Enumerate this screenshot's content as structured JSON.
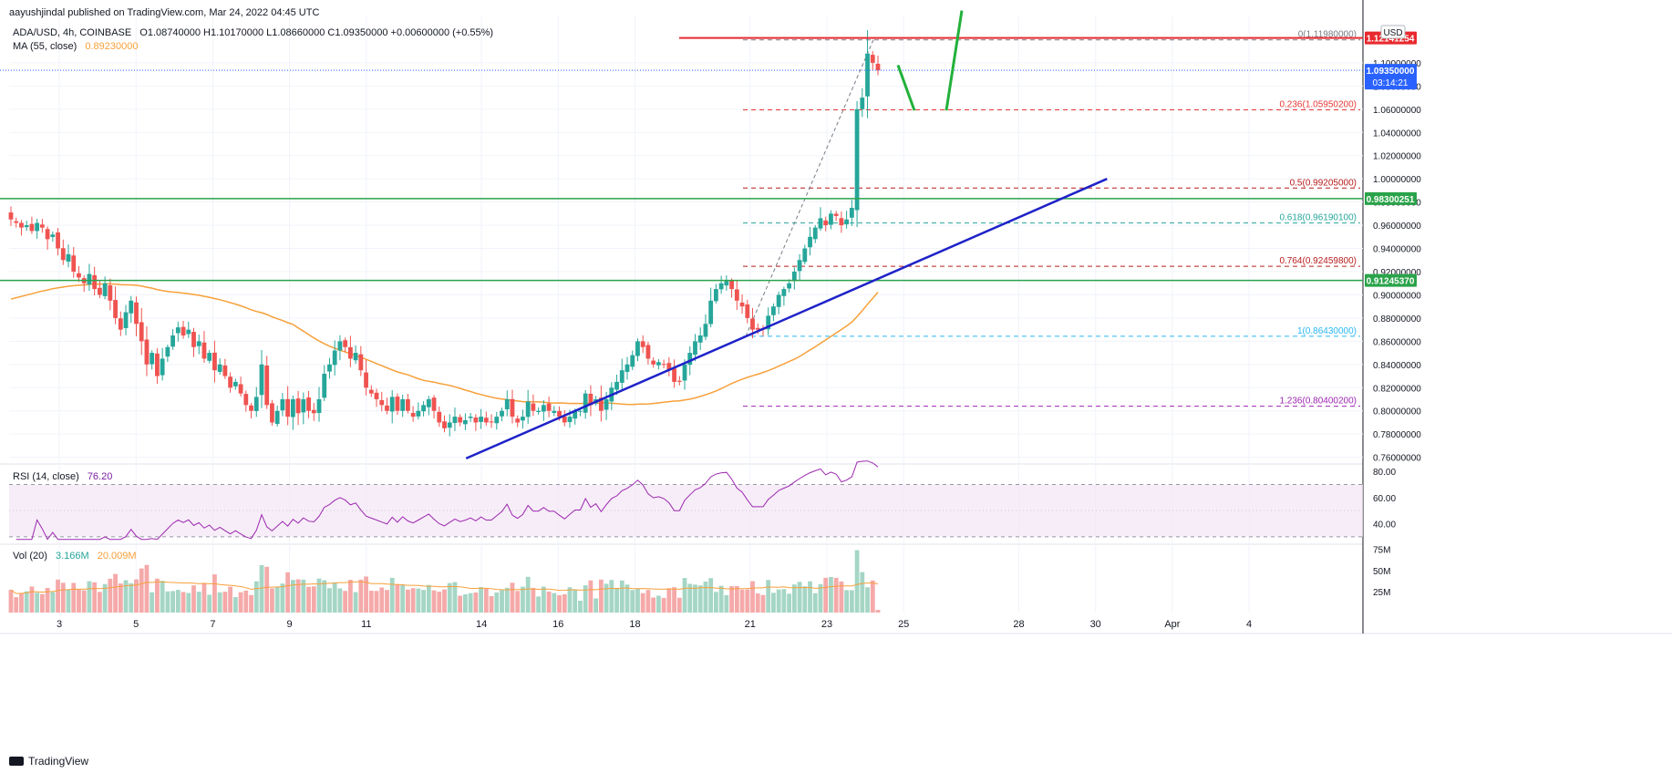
{
  "header": {
    "published": "aayushjindal published on TradingView.com, Mar 24, 2022 04:45 UTC"
  },
  "main_legend": {
    "symbol": "ADA/USD, 4h, COINBASE",
    "ohlc": "O1.08740000 H1.10170000 L1.08660000 C1.09350000 +0.00600000 (+0.55%)"
  },
  "ma_legend": {
    "label": "MA (55, close)",
    "value": "0.89230000"
  },
  "rsi_legend": {
    "label": "RSI (14, close)",
    "value": "76.20"
  },
  "vol_legend": {
    "label": "Vol (20)",
    "value1": "3.166M",
    "value2": "20.009M"
  },
  "footer": {
    "brand": "TradingView"
  },
  "currency_badge": "USD",
  "colors": {
    "up": "#26a69a",
    "down": "#ef5350",
    "ma": "#f7a03a",
    "trend": "#1e22c8",
    "support": "#2aa34a",
    "resistance": "#e8292e",
    "rsi": "#9c27b0",
    "price_label": "#2962ff"
  },
  "chart_data": {
    "type": "candlestick",
    "symbol": "ADA/USD",
    "timeframe": "4h",
    "exchange": "COINBASE",
    "x_ticks": [
      "3",
      "5",
      "7",
      "9",
      "11",
      "14",
      "16",
      "18",
      "21",
      "23",
      "25",
      "28",
      "30",
      "Apr",
      "4"
    ],
    "y_ticks": [
      "0.76000000",
      "0.78000000",
      "0.80000000",
      "0.82000000",
      "0.84000000",
      "0.86000000",
      "0.88000000",
      "0.90000000",
      "0.92000000",
      "0.94000000",
      "0.96000000",
      "0.98000000",
      "1.00000000",
      "1.02000000",
      "1.04000000",
      "1.06000000",
      "1.08000000",
      "1.10000000"
    ],
    "ylim": [
      0.755,
      1.14
    ],
    "current_price": {
      "value": "1.09350000",
      "countdown": "03:14:21"
    },
    "horizontal_levels": [
      {
        "value": "1.12141254"
      },
      {
        "value": "0.98300251"
      },
      {
        "value": "0.91245370"
      }
    ],
    "fib_levels": [
      {
        "label": "0(1.11980000)",
        "value": 1.1198
      },
      {
        "label": "0.236(1.05950200)",
        "value": 1.059502
      },
      {
        "label": "0.5(0.99205000)",
        "value": 0.99205
      },
      {
        "label": "0.618(0.96190100)",
        "value": 0.961901
      },
      {
        "label": "0.764(0.92459800)",
        "value": 0.924598
      },
      {
        "label": "1(0.86430000)",
        "value": 0.8643
      },
      {
        "label": "1.236(0.80400200)",
        "value": 0.804002
      }
    ],
    "trendline": {
      "from": [
        13.6,
        0.759
      ],
      "to": [
        30.3,
        1.0
      ]
    },
    "closes": [
      0.965,
      0.962,
      0.958,
      0.96,
      0.955,
      0.962,
      0.958,
      0.948,
      0.952,
      0.94,
      0.93,
      0.935,
      0.92,
      0.915,
      0.91,
      0.918,
      0.905,
      0.9,
      0.91,
      0.895,
      0.88,
      0.87,
      0.885,
      0.895,
      0.875,
      0.86,
      0.84,
      0.85,
      0.83,
      0.845,
      0.855,
      0.865,
      0.872,
      0.865,
      0.87,
      0.855,
      0.86,
      0.845,
      0.85,
      0.835,
      0.84,
      0.83,
      0.82,
      0.825,
      0.815,
      0.805,
      0.8,
      0.812,
      0.84,
      0.805,
      0.79,
      0.8,
      0.81,
      0.795,
      0.81,
      0.798,
      0.81,
      0.8,
      0.798,
      0.81,
      0.832,
      0.84,
      0.852,
      0.86,
      0.855,
      0.845,
      0.85,
      0.835,
      0.82,
      0.815,
      0.81,
      0.805,
      0.8,
      0.812,
      0.8,
      0.81,
      0.8,
      0.795,
      0.8,
      0.805,
      0.81,
      0.8,
      0.79,
      0.785,
      0.79,
      0.795,
      0.79,
      0.792,
      0.795,
      0.79,
      0.795,
      0.79,
      0.79,
      0.795,
      0.8,
      0.81,
      0.795,
      0.79,
      0.795,
      0.808,
      0.8,
      0.8,
      0.805,
      0.8,
      0.8,
      0.795,
      0.79,
      0.795,
      0.8,
      0.8,
      0.815,
      0.805,
      0.81,
      0.8,
      0.81,
      0.82,
      0.825,
      0.835,
      0.84,
      0.848,
      0.86,
      0.855,
      0.845,
      0.84,
      0.842,
      0.84,
      0.835,
      0.825,
      0.825,
      0.84,
      0.85,
      0.86,
      0.865,
      0.875,
      0.895,
      0.905,
      0.91,
      0.912,
      0.905,
      0.895,
      0.89,
      0.88,
      0.87,
      0.87,
      0.87,
      0.882,
      0.89,
      0.9,
      0.905,
      0.91,
      0.92,
      0.93,
      0.94,
      0.95,
      0.958,
      0.966,
      0.96,
      0.97,
      0.968,
      0.96,
      0.965,
      0.975,
      1.06,
      1.07,
      1.108,
      1.1,
      1.0935
    ],
    "ma55_start": 0.895,
    "rsi": {
      "length": 14,
      "value": "76.20",
      "y_ticks": [
        "40.00",
        "60.00",
        "80.00"
      ],
      "band": [
        30,
        70
      ],
      "ylim": [
        25,
        85
      ]
    },
    "volume": {
      "length": 20,
      "y_ticks": [
        "25M",
        "50M",
        "75M"
      ],
      "last": "3.166M",
      "ma": "20.009M",
      "ylim": [
        0,
        80
      ]
    }
  }
}
